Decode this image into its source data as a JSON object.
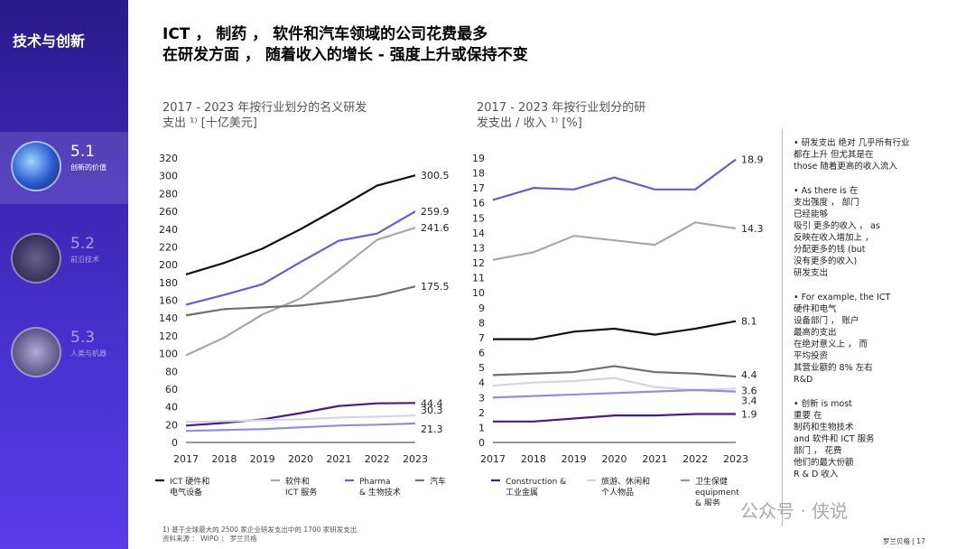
{
  "sidebar": {
    "title": "技术与创新",
    "items": [
      {
        "num": "5.1",
        "label": "创新的价值"
      },
      {
        "num": "5.2",
        "label": "前沿技术"
      },
      {
        "num": "5.3",
        "label": "人类与机器"
      }
    ]
  },
  "headline": {
    "line1": "ICT ， 制药 ， 软件和汽车领域的公司花费最多",
    "line2": "在研发方面 ， 随着收入的增长 - 强度上升或保持不变"
  },
  "colors": {
    "black": "#111111",
    "gray": "#a8a8a8",
    "purple": "#6a5ad6",
    "darkgray": "#707070",
    "darkpurple": "#4b1a90",
    "lightgray": "#d4d4e4",
    "lightpurple": "#8e8fe0"
  },
  "chart_data": [
    {
      "type": "line",
      "title_line1": "2017 - 2023 年按行业划分的名义研发",
      "title_line2": "支出 ¹⁾ [十亿美元]",
      "x": [
        2017,
        2018,
        2019,
        2020,
        2021,
        2022,
        2023
      ],
      "ylim": [
        0,
        320
      ],
      "yticks": [
        0,
        20,
        40,
        60,
        80,
        100,
        120,
        140,
        160,
        180,
        200,
        220,
        240,
        260,
        280,
        300,
        320
      ],
      "series": [
        {
          "key": "ict",
          "values": [
            189,
            202,
            218,
            240,
            264,
            289,
            300.5
          ],
          "end_label": "300.5",
          "color": "#111111"
        },
        {
          "key": "software",
          "values": [
            98,
            118,
            144,
            162,
            194,
            228,
            241.6
          ],
          "end_label": "241.6",
          "color": "#a8a8a8"
        },
        {
          "key": "pharma",
          "values": [
            155,
            166,
            178,
            203,
            227,
            235,
            259.9
          ],
          "end_label": "259.9",
          "color": "#6a5ad6"
        },
        {
          "key": "auto",
          "values": [
            143,
            150,
            152,
            154,
            159,
            165,
            175.5
          ],
          "end_label": "175.5",
          "color": "#707070"
        },
        {
          "key": "construction",
          "values": [
            19,
            22,
            26,
            33,
            41,
            44,
            44.4
          ],
          "end_label": "44.4",
          "color": "#4b1a90"
        },
        {
          "key": "leisure",
          "values": [
            23,
            24,
            25,
            26,
            28,
            29,
            30.3
          ],
          "end_label": "30.3",
          "color": "#d4d4e4"
        },
        {
          "key": "health",
          "values": [
            13,
            14,
            15,
            17,
            19,
            20,
            21.3
          ],
          "end_label": "21.3",
          "color": "#8e8fe0"
        }
      ],
      "legend": [
        {
          "key": "ict",
          "label_1": "ICT 硬件和",
          "label_2": "电气设备"
        },
        {
          "key": "software",
          "label_1": "软件和",
          "label_2": "ICT 服务"
        },
        {
          "key": "pharma",
          "label_1": "Pharma",
          "label_2": "& 生物技术"
        },
        {
          "key": "auto",
          "label_1": "汽车",
          "label_2": ""
        }
      ]
    },
    {
      "type": "line",
      "title_line1": "2017 - 2023 年按行业划分的研",
      "title_line2": "发支出 / 收入 ¹⁾ [%]",
      "x": [
        2017,
        2018,
        2019,
        2020,
        2021,
        2022,
        2023
      ],
      "ylim": [
        0,
        19
      ],
      "yticks": [
        0,
        1,
        2,
        3,
        4,
        5,
        6,
        7,
        8,
        9,
        10,
        11,
        12,
        13,
        14,
        15,
        16,
        17,
        18,
        19
      ],
      "series": [
        {
          "key": "pharma",
          "values": [
            16.2,
            17.0,
            16.9,
            17.7,
            16.9,
            16.9,
            18.9
          ],
          "end_label": "18.9",
          "color": "#6a5ad6"
        },
        {
          "key": "software",
          "values": [
            12.2,
            12.7,
            13.8,
            13.5,
            13.2,
            14.7,
            14.3
          ],
          "end_label": "14.3",
          "color": "#a8a8a8"
        },
        {
          "key": "ict",
          "values": [
            6.9,
            6.9,
            7.4,
            7.6,
            7.2,
            7.6,
            8.1
          ],
          "end_label": "8.1",
          "color": "#111111"
        },
        {
          "key": "auto",
          "values": [
            4.5,
            4.6,
            4.7,
            5.1,
            4.7,
            4.6,
            4.4
          ],
          "end_label": "4.4",
          "color": "#707070"
        },
        {
          "key": "leisure",
          "values": [
            3.8,
            4.0,
            4.1,
            4.3,
            3.7,
            3.5,
            3.6
          ],
          "end_label": "3.6",
          "color": "#d4d4e4"
        },
        {
          "key": "health",
          "values": [
            3.0,
            3.1,
            3.2,
            3.3,
            3.4,
            3.5,
            3.4
          ],
          "end_label": "3.4",
          "color": "#8e8fe0"
        },
        {
          "key": "construction",
          "values": [
            1.4,
            1.4,
            1.6,
            1.8,
            1.8,
            1.9,
            1.9
          ],
          "end_label": "1.9",
          "color": "#4b1a90"
        }
      ],
      "legend": [
        {
          "key": "construction",
          "label_1": "Construction &",
          "label_2": "工业金属"
        },
        {
          "key": "leisure",
          "label_1": "旅游、休闲和",
          "label_2": "个人物品"
        },
        {
          "key": "health",
          "label_1": "卫生保健",
          "label_2": "equipment",
          "label_3": "& 服务"
        }
      ]
    }
  ],
  "notes": [
    {
      "text": "研发支出 绝对 几乎所有行业\n都在上升 但尤其是在\nthose 随着更高的收入流入"
    },
    {
      "text": "As there is 在\n支出强度 ，      部门\n已经能够\n吸引   更多的收入 ，  as\n反映在收入增加上 ，\n分配更多的钱         (but\n没有更多的收入)\n研发支出"
    },
    {
      "text": "For example, the     ICT\n硬件和电气\n设备部门 ， 账户\n最高的支出\n在绝对意义上 ， 而\n平均投资\n其营业额的 8% 左右\nR&D"
    },
    {
      "text": "创新          is most\n重要             在\n制药和生物技术\nand 软件和 ICT 服务\n部门 ，  花费\n他们的最大份额\nR & D 收入"
    }
  ],
  "footnote": {
    "line1": "1) 基于全球最大的 2500 家企业研发支出中的 1700 家研发支出",
    "line2": "资料来源 ： WIPO ； 罗兰贝格"
  },
  "page_num": "罗兰贝格 | 17",
  "watermark": "公众号 · 侠说"
}
